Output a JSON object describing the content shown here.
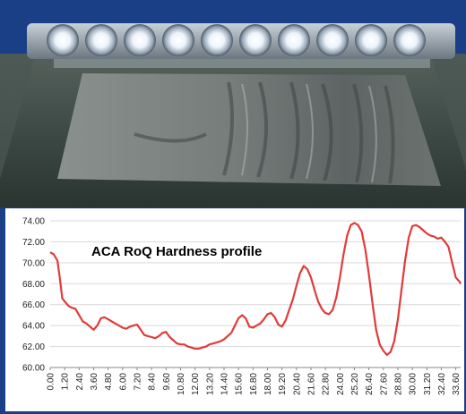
{
  "photo": {
    "subject": "lamp-bar-above-wrinkled-sheet-on-glass-table",
    "colors": {
      "frame": "#1b3f86",
      "lamp": "#fbfdff",
      "sheet": "#6f7675",
      "table": "#3d4a45"
    }
  },
  "chart_data": {
    "type": "line",
    "title": "ACA RoQ Hardness profile",
    "xlabel": "",
    "ylabel": "",
    "ylim": [
      60,
      74
    ],
    "xlim": [
      0,
      34.0
    ],
    "yticks": [
      "60.00",
      "62.00",
      "64.00",
      "66.00",
      "68.00",
      "70.00",
      "72.00",
      "74.00"
    ],
    "xticks": [
      "0.00",
      "1.20",
      "2.40",
      "3.60",
      "4.80",
      "6.00",
      "7.20",
      "8.40",
      "9.60",
      "10.80",
      "12.00",
      "13.20",
      "14.40",
      "15.60",
      "16.80",
      "18.00",
      "19.20",
      "20.40",
      "21.60",
      "22.80",
      "24.00",
      "25.20",
      "26.40",
      "27.60",
      "28.80",
      "30.00",
      "31.20",
      "32.40",
      "33.60"
    ],
    "grid": "horizontal",
    "line_color": "#e23a3a",
    "series": [
      {
        "x": [
          0,
          0.3,
          0.6,
          0.8,
          1.0,
          1.2,
          1.5,
          1.8,
          2.1,
          2.4,
          2.7,
          3.0,
          3.3,
          3.6,
          3.9,
          4.2,
          4.5,
          4.8,
          5.1,
          5.4,
          5.7,
          6.0,
          6.3,
          6.6,
          6.9,
          7.2,
          7.5,
          7.8,
          8.1,
          8.4,
          8.7,
          9.0,
          9.3,
          9.6,
          9.9,
          10.2,
          10.5,
          10.8,
          11.1,
          11.4,
          11.7,
          12.0,
          12.3,
          12.6,
          12.9,
          13.2,
          13.5,
          13.8,
          14.1,
          14.4,
          14.7,
          15.0,
          15.3,
          15.6,
          15.9,
          16.2,
          16.5,
          16.8,
          17.1,
          17.4,
          17.7,
          18.0,
          18.3,
          18.6,
          18.9,
          19.2,
          19.5,
          19.8,
          20.1,
          20.4,
          20.7,
          21.0,
          21.3,
          21.6,
          21.9,
          22.2,
          22.5,
          22.8,
          23.1,
          23.4,
          23.7,
          24.0,
          24.3,
          24.6,
          24.9,
          25.2,
          25.5,
          25.8,
          26.1,
          26.4,
          26.7,
          27.0,
          27.3,
          27.6,
          27.9,
          28.2,
          28.5,
          28.8,
          29.1,
          29.4,
          29.7,
          30.0,
          30.3,
          30.6,
          30.9,
          31.2,
          31.5,
          31.8,
          32.1,
          32.4,
          32.7,
          33.0,
          33.3,
          33.6,
          33.9,
          34.0
        ],
        "y": [
          71.0,
          70.8,
          70.2,
          68.5,
          66.6,
          66.3,
          65.9,
          65.7,
          65.6,
          65.0,
          64.4,
          64.2,
          63.9,
          63.6,
          64.0,
          64.7,
          64.8,
          64.6,
          64.4,
          64.2,
          64.0,
          63.8,
          63.7,
          63.9,
          64.0,
          64.1,
          63.6,
          63.1,
          63.0,
          62.9,
          62.8,
          63.0,
          63.3,
          63.4,
          62.9,
          62.6,
          62.3,
          62.2,
          62.2,
          62.0,
          61.9,
          61.8,
          61.8,
          61.9,
          62.0,
          62.2,
          62.3,
          62.4,
          62.5,
          62.7,
          63.0,
          63.3,
          64.0,
          64.7,
          65.0,
          64.7,
          63.9,
          63.8,
          64.0,
          64.2,
          64.6,
          65.1,
          65.2,
          64.8,
          64.1,
          63.9,
          64.5,
          65.5,
          66.5,
          67.8,
          69.0,
          69.7,
          69.4,
          68.6,
          67.4,
          66.3,
          65.6,
          65.2,
          65.1,
          65.5,
          66.7,
          68.6,
          70.8,
          72.6,
          73.6,
          73.8,
          73.6,
          73.0,
          71.3,
          68.9,
          66.1,
          63.6,
          62.2,
          61.6,
          61.2,
          61.5,
          62.5,
          64.6,
          67.4,
          70.2,
          72.4,
          73.5,
          73.6,
          73.4,
          73.1,
          72.8,
          72.6,
          72.5,
          72.3,
          72.4,
          72.0,
          71.5,
          70.0,
          68.6,
          68.2,
          68.0
        ]
      }
    ]
  }
}
